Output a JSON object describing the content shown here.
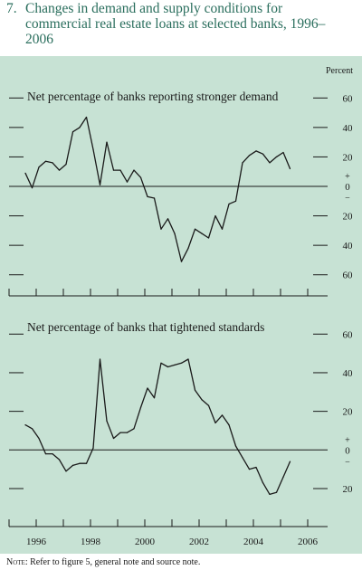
{
  "figure": {
    "number": "7.",
    "title": "Changes in demand and supply conditions for commercial real estate loans at selected banks, 1996–2006",
    "unit_label": "Percent",
    "note_label": "Note:",
    "note_text": "Refer to figure 5, general note and source note."
  },
  "colors": {
    "background": "#c7e2d4",
    "line": "#1a1a1a",
    "title": "#2a6e5d"
  },
  "chart_data": [
    {
      "type": "line",
      "title": "Net percentage of banks reporting stronger demand",
      "xlabel": "",
      "ylabel": "Percent",
      "xlim": [
        1996,
        2007
      ],
      "ylim": [
        -70,
        70
      ],
      "grid": false,
      "yticks": [
        {
          "value": 60,
          "label": "60"
        },
        {
          "value": 40,
          "label": "40"
        },
        {
          "value": 20,
          "label": "20"
        },
        {
          "value": 0,
          "label": "0"
        },
        {
          "value": -20,
          "label": "20"
        },
        {
          "value": -40,
          "label": "40"
        },
        {
          "value": -60,
          "label": "60"
        }
      ],
      "zero_marks": {
        "plus": "+",
        "minus": "−"
      },
      "series": [
        {
          "name": "",
          "x": [
            1996.0,
            1996.25,
            1996.5,
            1996.75,
            1997.0,
            1997.25,
            1997.5,
            1997.75,
            1998.0,
            1998.25,
            1998.5,
            1998.75,
            1999.0,
            1999.25,
            1999.5,
            1999.75,
            2000.0,
            2000.25,
            2000.5,
            2000.75,
            2001.0,
            2001.25,
            2001.5,
            2001.75,
            2002.0,
            2002.25,
            2002.5,
            2002.75,
            2003.0,
            2003.25,
            2003.5,
            2003.75,
            2004.0,
            2004.25,
            2004.5,
            2004.75,
            2005.0,
            2005.25,
            2005.5,
            2005.75
          ],
          "y": [
            9,
            -1,
            13,
            17,
            16,
            11,
            15,
            37,
            40,
            47,
            25,
            1,
            30,
            11,
            11,
            3,
            11,
            6,
            -7,
            -8,
            -29,
            -22,
            -32,
            -51,
            -42,
            -29,
            -32,
            -35,
            -20,
            -29,
            -12,
            -10,
            16,
            21,
            24,
            22,
            16,
            20,
            23,
            12
          ]
        }
      ]
    },
    {
      "type": "line",
      "title": "Net percentage of banks that tightened standards",
      "xlabel": "",
      "ylabel": "Percent",
      "xlim": [
        1996,
        2007
      ],
      "ylim": [
        -35,
        62
      ],
      "grid": false,
      "xticks": [
        "1996",
        "1998",
        "2000",
        "2002",
        "2004",
        "2006"
      ],
      "yticks": [
        {
          "value": 60,
          "label": "60"
        },
        {
          "value": 40,
          "label": "40"
        },
        {
          "value": 20,
          "label": "20"
        },
        {
          "value": 0,
          "label": "0"
        },
        {
          "value": -20,
          "label": "20"
        }
      ],
      "zero_marks": {
        "plus": "+",
        "minus": "−"
      },
      "series": [
        {
          "name": "",
          "x": [
            1996.0,
            1996.25,
            1996.5,
            1996.75,
            1997.0,
            1997.25,
            1997.5,
            1997.75,
            1998.0,
            1998.25,
            1998.5,
            1998.75,
            1999.0,
            1999.25,
            1999.5,
            1999.75,
            2000.0,
            2000.25,
            2000.5,
            2000.75,
            2001.0,
            2001.25,
            2001.5,
            2001.75,
            2002.0,
            2002.25,
            2002.5,
            2002.75,
            2003.0,
            2003.25,
            2003.5,
            2003.75,
            2004.0,
            2004.25,
            2004.5,
            2004.75,
            2005.0,
            2005.25,
            2005.5,
            2005.75
          ],
          "y": [
            13,
            11,
            6,
            -2,
            -2,
            -5,
            -11,
            -8,
            -7,
            -7,
            1,
            47,
            15,
            6,
            9,
            9,
            11,
            22,
            32,
            27,
            45,
            43,
            44,
            45,
            47,
            31,
            26,
            23,
            14,
            18,
            13,
            2,
            -4,
            -10,
            -9,
            -17,
            -23,
            -22,
            -14,
            -6
          ]
        }
      ]
    }
  ]
}
